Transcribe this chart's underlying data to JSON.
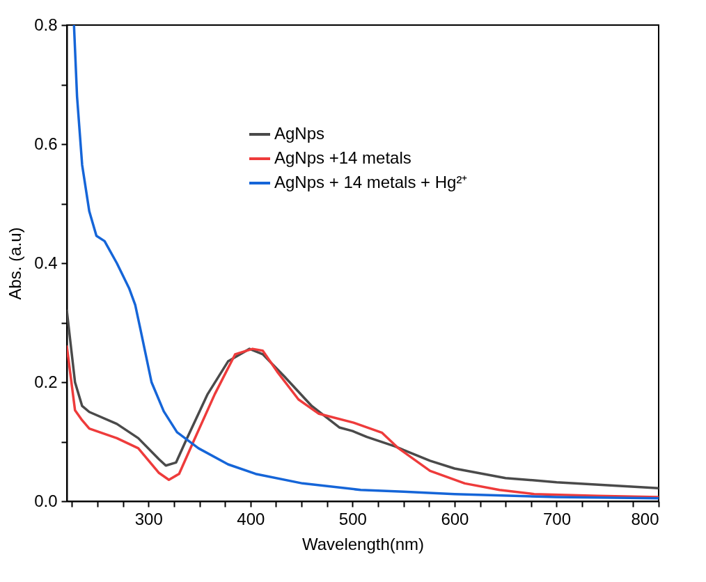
{
  "chart_data": {
    "type": "line",
    "xlabel": "Wavelength(nm)",
    "ylabel": "Abs. (a.u)",
    "xlim": [
      220,
      800
    ],
    "ylim": [
      0,
      0.8
    ],
    "xticks": [
      {
        "value": 225,
        "label": null
      },
      {
        "value": 250,
        "label": null
      },
      {
        "value": 275,
        "label": null
      },
      300,
      {
        "value": 325,
        "label": null
      },
      {
        "value": 350,
        "label": null
      },
      {
        "value": 375,
        "label": null
      },
      400,
      {
        "value": 425,
        "label": null
      },
      {
        "value": 450,
        "label": null
      },
      {
        "value": 475,
        "label": null
      },
      500,
      {
        "value": 525,
        "label": null
      },
      {
        "value": 550,
        "label": null
      },
      {
        "value": 575,
        "label": null
      },
      600,
      {
        "value": 625,
        "label": null
      },
      {
        "value": 650,
        "label": null
      },
      {
        "value": 675,
        "label": null
      },
      700,
      {
        "value": 725,
        "label": null
      },
      {
        "value": 750,
        "label": null
      },
      {
        "value": 775,
        "label": null
      },
      800
    ],
    "yticks": [
      {
        "value": 0,
        "label": "0.0"
      },
      {
        "value": 0.1,
        "label": null
      },
      0.2,
      {
        "value": 0.3,
        "label": null
      },
      0.4,
      {
        "value": 0.5,
        "label": null
      },
      0.6,
      {
        "value": 0.7,
        "label": null
      },
      0.8
    ],
    "grid": false,
    "legend": "top right",
    "line_style": "solid",
    "marker": "none",
    "series": [
      {
        "name": "AgNps",
        "color": "#4a4a4a",
        "x": [
          220,
          228,
          235,
          242,
          269,
          290,
          310,
          317,
          327,
          337,
          358,
          378,
          399,
          412,
          433,
          460,
          487,
          500,
          514,
          542,
          550,
          576,
          600,
          650,
          700,
          750,
          800
        ],
        "values": [
          0.32,
          0.2,
          0.16,
          0.15,
          0.13,
          0.106,
          0.071,
          0.06,
          0.065,
          0.103,
          0.18,
          0.235,
          0.256,
          0.247,
          0.21,
          0.16,
          0.124,
          0.118,
          0.108,
          0.092,
          0.086,
          0.068,
          0.055,
          0.039,
          0.032,
          0.027,
          0.022
        ]
      },
      {
        "name": "AgNps +14 metals",
        "color": "#ee3b3b",
        "x": [
          220,
          228,
          235,
          242,
          269,
          290,
          310,
          320,
          330,
          344,
          365,
          385,
          402,
          412,
          426,
          447,
          467,
          501,
          529,
          545,
          576,
          610,
          644,
          678,
          740,
          800
        ],
        "values": [
          0.26,
          0.153,
          0.136,
          0.122,
          0.106,
          0.089,
          0.048,
          0.036,
          0.046,
          0.1,
          0.18,
          0.247,
          0.256,
          0.253,
          0.218,
          0.171,
          0.147,
          0.132,
          0.115,
          0.089,
          0.051,
          0.03,
          0.019,
          0.012,
          0.009,
          0.007
        ]
      },
      {
        "name": "AgNps + 14 metals + Hg²⁺",
        "color": "#1565d8",
        "x": [
          227,
          230,
          235,
          242,
          249,
          257,
          269,
          281,
          287,
          292,
          303,
          315,
          328,
          349,
          378,
          405,
          451,
          508,
          550,
          600,
          700,
          800
        ],
        "values": [
          0.8,
          0.68,
          0.565,
          0.487,
          0.446,
          0.437,
          0.4,
          0.358,
          0.33,
          0.29,
          0.2,
          0.151,
          0.116,
          0.089,
          0.062,
          0.046,
          0.03,
          0.019,
          0.016,
          0.012,
          0.007,
          0.005
        ]
      }
    ]
  }
}
